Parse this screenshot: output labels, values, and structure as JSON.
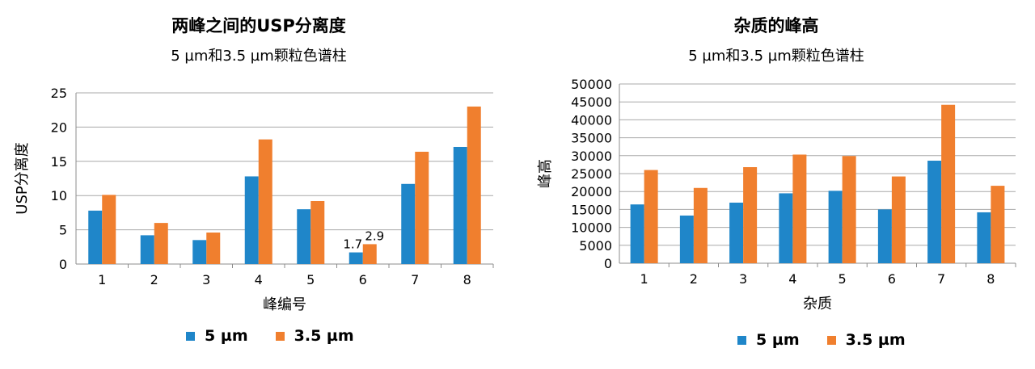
{
  "colors": {
    "series_5um": "#1f86c9",
    "series_3_5um": "#f07f2e",
    "grid": "#a8a8a8",
    "axis": "#8c8c8c"
  },
  "chart_data": [
    {
      "type": "bar",
      "title": "两峰之间的USP分离度",
      "subtitle": "5 µm和3.5 µm颗粒色谱柱",
      "xlabel": "峰编号",
      "ylabel": "USP分离度",
      "categories": [
        "1",
        "2",
        "3",
        "4",
        "5",
        "6",
        "7",
        "8"
      ],
      "ylim": [
        0,
        25
      ],
      "yticks": [
        "0",
        "5",
        "10",
        "15",
        "20",
        "25"
      ],
      "grid": true,
      "legend": "bottom",
      "series": [
        {
          "name": "5 µm",
          "values": [
            7.8,
            4.2,
            3.5,
            12.8,
            8.0,
            1.7,
            11.7,
            17.1
          ]
        },
        {
          "name": "3.5 µm",
          "values": [
            10.1,
            6.0,
            4.6,
            18.2,
            9.2,
            2.9,
            16.4,
            23.0
          ]
        }
      ],
      "annotations": [
        {
          "category": "6",
          "series": "5 µm",
          "text": "1.7"
        },
        {
          "category": "6",
          "series": "3.5 µm",
          "text": "2.9"
        }
      ]
    },
    {
      "type": "bar",
      "title": "杂质的峰高",
      "subtitle": "5 µm和3.5 µm颗粒色谱柱",
      "xlabel": "杂质",
      "ylabel": "峰高",
      "categories": [
        "1",
        "2",
        "3",
        "4",
        "5",
        "6",
        "7",
        "8"
      ],
      "ylim": [
        0,
        50000
      ],
      "yticks": [
        "0",
        "5000",
        "10000",
        "15000",
        "20000",
        "25000",
        "30000",
        "35000",
        "40000",
        "45000",
        "50000"
      ],
      "grid": true,
      "legend": "bottom",
      "series": [
        {
          "name": "5 µm",
          "values": [
            16400,
            13300,
            16900,
            19500,
            20200,
            15000,
            28600,
            14200
          ]
        },
        {
          "name": "3.5 µm",
          "values": [
            26000,
            21000,
            26800,
            30300,
            29900,
            24200,
            44200,
            21600
          ]
        }
      ]
    }
  ]
}
